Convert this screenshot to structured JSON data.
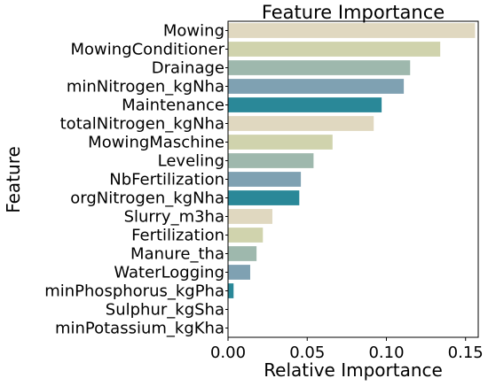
{
  "chart_data": {
    "type": "bar",
    "orientation": "horizontal",
    "title": "Feature Importance",
    "xlabel": "Relative Importance",
    "ylabel": "Feature",
    "xlim": [
      0,
      0.158
    ],
    "xticks": [
      "0.00",
      "0.05",
      "0.10",
      "0.15"
    ],
    "xtick_values": [
      0,
      0.05,
      0.1,
      0.15
    ],
    "grid": false,
    "categories": [
      "Mowing",
      "MowingConditioner",
      "Drainage",
      "minNitrogen_kgNha",
      "Maintenance",
      "totalNitrogen_kgNha",
      "MowingMaschine",
      "Leveling",
      "NbFertilization",
      "orgNitrogen_kgNha",
      "Slurry_m3ha",
      "Fertilization",
      "Manure_tha",
      "WaterLogging",
      "minPhosphorus_kgPha",
      "Sulphur_kgSha",
      "minPotassium_kgKha"
    ],
    "values": [
      0.156,
      0.134,
      0.115,
      0.111,
      0.097,
      0.092,
      0.066,
      0.054,
      0.046,
      0.045,
      0.028,
      0.022,
      0.018,
      0.014,
      0.0035,
      0.0,
      0.0
    ],
    "palette": [
      "#e0d8c0",
      "#d0d3ad",
      "#9eb8ad",
      "#7fa1b2",
      "#2a8898"
    ]
  }
}
